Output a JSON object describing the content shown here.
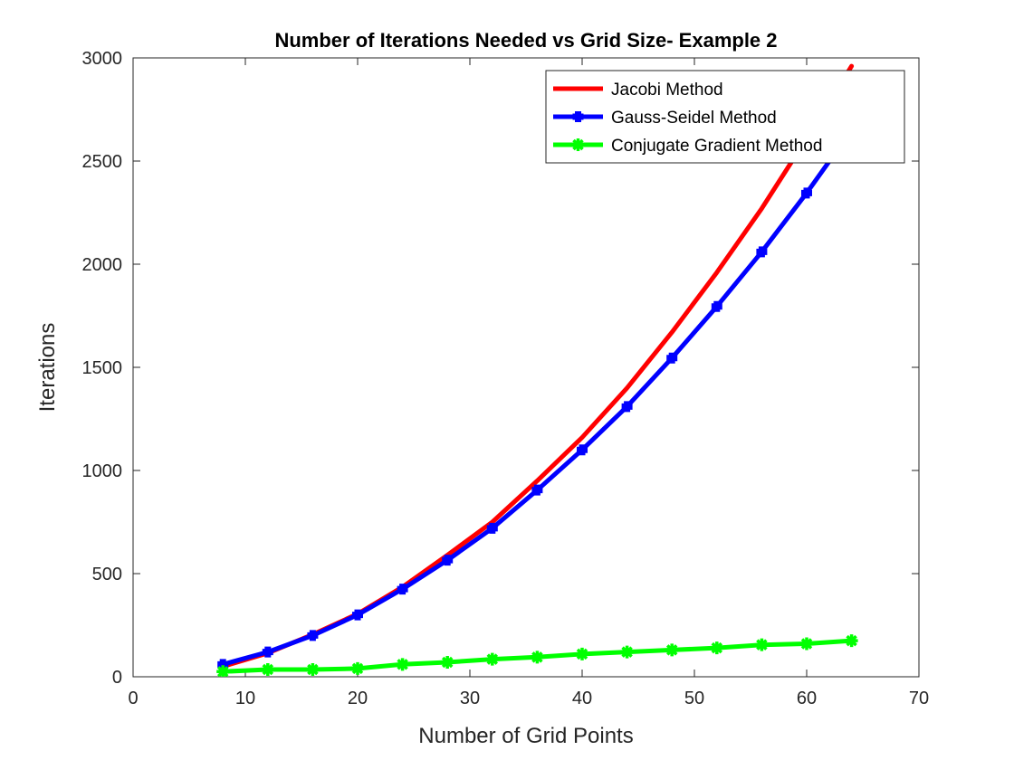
{
  "chart_data": {
    "type": "line",
    "title": "Number of Iterations Needed vs Grid Size- Example 2",
    "xlabel": "Number of Grid Points",
    "ylabel": "Iterations",
    "xlim": [
      0,
      70
    ],
    "ylim": [
      0,
      3000
    ],
    "xticks": [
      0,
      10,
      20,
      30,
      40,
      50,
      60,
      70
    ],
    "yticks": [
      0,
      500,
      1000,
      1500,
      2000,
      2500,
      3000
    ],
    "grid": false,
    "legend_position": "top-right",
    "series": [
      {
        "name": "Jacobi Method",
        "color": "#ff0000",
        "marker": "none",
        "x": [
          8,
          12,
          16,
          20,
          24,
          28,
          32,
          36,
          40,
          44,
          48,
          52,
          56,
          60,
          64
        ],
        "y": [
          50,
          115,
          205,
          305,
          435,
          590,
          750,
          950,
          1160,
          1400,
          1670,
          1960,
          2270,
          2610,
          2960
        ]
      },
      {
        "name": "Gauss-Seidel Method",
        "color": "#0000ff",
        "marker": "cross",
        "x": [
          8,
          12,
          16,
          20,
          24,
          28,
          32,
          36,
          40,
          44,
          48,
          52,
          56,
          60,
          64
        ],
        "y": [
          60,
          120,
          200,
          300,
          425,
          565,
          720,
          905,
          1100,
          1310,
          1545,
          1795,
          2060,
          2345,
          2650
        ]
      },
      {
        "name": "Conjugate Gradient Method",
        "color": "#00ff00",
        "marker": "star",
        "x": [
          8,
          12,
          16,
          20,
          24,
          28,
          32,
          36,
          40,
          44,
          48,
          52,
          56,
          60,
          64
        ],
        "y": [
          25,
          35,
          35,
          40,
          60,
          70,
          85,
          95,
          110,
          120,
          130,
          140,
          155,
          160,
          175
        ]
      }
    ]
  }
}
